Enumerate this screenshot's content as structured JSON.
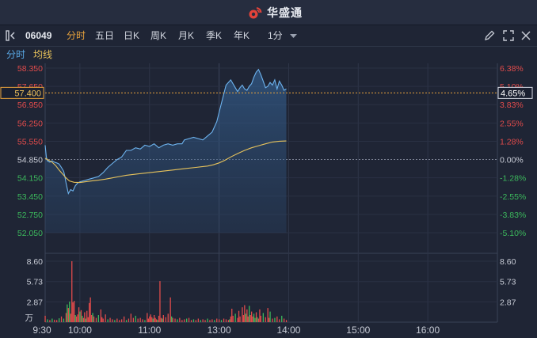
{
  "app": {
    "title": "华盛通"
  },
  "toolbar": {
    "stock_code": "06049",
    "periods": [
      "分时",
      "五日",
      "日K",
      "周K",
      "月K",
      "季K",
      "年K"
    ],
    "active_period": "分时",
    "interval": "1分",
    "icons": [
      "panel-toggle-icon",
      "pencil-icon",
      "expand-icon",
      "close-icon"
    ]
  },
  "legend": {
    "items": [
      "分时",
      "均线"
    ],
    "colors": {
      "price": "#5aa9e6",
      "avg": "#e8c25a"
    }
  },
  "colors": {
    "up": "#e04b4b",
    "down": "#3cb85c",
    "price_line": "#6db3ee",
    "avg_line": "#e7c35c",
    "crosshair": "#e8a23c",
    "axis_text": "#c8ccd6"
  },
  "chart_data": {
    "type": "line",
    "title": "",
    "time_ticks": [
      "9:30",
      "10:00",
      "11:00",
      "13:00",
      "14:00",
      "15:00",
      "16:00"
    ],
    "price_axis": {
      "left_ticks": [
        "58.350",
        "57.650",
        "56.950",
        "56.250",
        "55.550",
        "54.850",
        "54.150",
        "53.450",
        "52.750",
        "52.050"
      ],
      "right_ticks": [
        "6.38%",
        "5.10%",
        "3.83%",
        "2.55%",
        "1.28%",
        "0.00%",
        "-1.28%",
        "-2.55%",
        "-3.83%",
        "-5.10%"
      ],
      "ylim": [
        52.05,
        58.35
      ],
      "prev_close": 54.85
    },
    "crosshair": {
      "price_label": "57.400",
      "pct_label": "4.65%",
      "value": 57.4
    },
    "price_series": {
      "name": "分时",
      "x": [
        0,
        1,
        2,
        4,
        6,
        8,
        10,
        12,
        14,
        16,
        17,
        18,
        20,
        22,
        24,
        26,
        28,
        30,
        34,
        38,
        42,
        46,
        50,
        54,
        58,
        62,
        66,
        70,
        74,
        78,
        82,
        86,
        90,
        94,
        98,
        102,
        106,
        110,
        114,
        118,
        120,
        124,
        128,
        132,
        136,
        140,
        144,
        148,
        152,
        156,
        160,
        164,
        166,
        168,
        170,
        172,
        174,
        176,
        178,
        180,
        182,
        184,
        186,
        188,
        190,
        192,
        194,
        196,
        198,
        200,
        202,
        204,
        206,
        208
      ],
      "values": [
        55.4,
        54.95,
        54.8,
        54.75,
        54.8,
        54.75,
        54.72,
        54.68,
        54.55,
        54.4,
        54.2,
        53.95,
        53.55,
        53.7,
        53.65,
        53.85,
        53.95,
        54.0,
        54.05,
        54.1,
        54.15,
        54.2,
        54.35,
        54.55,
        54.7,
        54.85,
        54.95,
        55.2,
        55.2,
        55.3,
        55.25,
        55.4,
        55.35,
        55.45,
        55.3,
        55.4,
        55.45,
        55.4,
        55.45,
        55.45,
        55.6,
        55.65,
        55.7,
        55.65,
        55.6,
        55.75,
        55.9,
        56.3,
        57.0,
        57.7,
        57.9,
        57.6,
        57.45,
        57.6,
        57.7,
        57.55,
        57.5,
        57.65,
        57.75,
        58.0,
        58.2,
        58.3,
        58.1,
        57.85,
        57.6,
        57.65,
        57.8,
        57.7,
        57.9,
        57.55,
        57.85,
        57.7,
        57.5,
        57.55
      ]
    },
    "avg_series": {
      "name": "均线",
      "x": [
        0,
        3,
        6,
        9,
        12,
        15,
        18,
        21,
        25,
        30,
        35,
        40,
        46,
        52,
        58,
        64,
        70,
        80,
        90,
        100,
        110,
        120,
        130,
        140,
        145,
        150,
        155,
        160,
        166,
        172,
        178,
        184,
        190,
        196,
        202,
        208
      ],
      "values": [
        54.9,
        54.82,
        54.75,
        54.62,
        54.45,
        54.3,
        54.15,
        54.03,
        53.98,
        53.97,
        54.0,
        54.03,
        54.06,
        54.1,
        54.15,
        54.2,
        54.25,
        54.3,
        54.35,
        54.4,
        54.45,
        54.5,
        54.55,
        54.6,
        54.65,
        54.72,
        54.82,
        54.95,
        55.08,
        55.2,
        55.3,
        55.38,
        55.45,
        55.52,
        55.55,
        55.56
      ]
    },
    "volume": {
      "left_ticks": [
        "8.60",
        "5.73",
        "2.87"
      ],
      "right_ticks": [
        "8.60",
        "5.73",
        "2.87"
      ],
      "unit": "万",
      "ylim": [
        0,
        8.6
      ],
      "bars": [
        {
          "x": 0,
          "v": 0.9,
          "d": "up"
        },
        {
          "x": 2,
          "v": 0.4,
          "d": "down"
        },
        {
          "x": 4,
          "v": 0.3,
          "d": "up"
        },
        {
          "x": 6,
          "v": 0.5,
          "d": "down"
        },
        {
          "x": 8,
          "v": 0.35,
          "d": "up"
        },
        {
          "x": 10,
          "v": 0.3,
          "d": "up"
        },
        {
          "x": 12,
          "v": 0.55,
          "d": "down"
        },
        {
          "x": 14,
          "v": 0.8,
          "d": "up"
        },
        {
          "x": 16,
          "v": 0.5,
          "d": "down"
        },
        {
          "x": 18,
          "v": 1.3,
          "d": "up"
        },
        {
          "x": 19,
          "v": 2.5,
          "d": "down"
        },
        {
          "x": 20,
          "v": 2.0,
          "d": "up"
        },
        {
          "x": 21,
          "v": 2.9,
          "d": "down"
        },
        {
          "x": 22,
          "v": 1.2,
          "d": "up"
        },
        {
          "x": 23,
          "v": 8.6,
          "d": "up"
        },
        {
          "x": 24,
          "v": 2.8,
          "d": "up"
        },
        {
          "x": 25,
          "v": 3.0,
          "d": "up"
        },
        {
          "x": 26,
          "v": 1.0,
          "d": "down"
        },
        {
          "x": 27,
          "v": 0.8,
          "d": "up"
        },
        {
          "x": 28,
          "v": 1.1,
          "d": "up"
        },
        {
          "x": 29,
          "v": 2.1,
          "d": "up"
        },
        {
          "x": 30,
          "v": 1.5,
          "d": "down"
        },
        {
          "x": 31,
          "v": 1.7,
          "d": "up"
        },
        {
          "x": 32,
          "v": 0.9,
          "d": "down"
        },
        {
          "x": 33,
          "v": 0.6,
          "d": "up"
        },
        {
          "x": 34,
          "v": 1.4,
          "d": "up"
        },
        {
          "x": 35,
          "v": 0.5,
          "d": "down"
        },
        {
          "x": 36,
          "v": 1.6,
          "d": "up"
        },
        {
          "x": 37,
          "v": 0.7,
          "d": "up"
        },
        {
          "x": 38,
          "v": 2.7,
          "d": "up"
        },
        {
          "x": 39,
          "v": 3.5,
          "d": "up"
        },
        {
          "x": 40,
          "v": 1.0,
          "d": "up"
        },
        {
          "x": 41,
          "v": 1.3,
          "d": "down"
        },
        {
          "x": 42,
          "v": 0.8,
          "d": "up"
        },
        {
          "x": 44,
          "v": 0.6,
          "d": "up"
        },
        {
          "x": 46,
          "v": 1.0,
          "d": "down"
        },
        {
          "x": 48,
          "v": 1.8,
          "d": "up"
        },
        {
          "x": 49,
          "v": 0.7,
          "d": "up"
        },
        {
          "x": 50,
          "v": 0.5,
          "d": "up"
        },
        {
          "x": 52,
          "v": 1.1,
          "d": "up"
        },
        {
          "x": 54,
          "v": 0.4,
          "d": "down"
        },
        {
          "x": 56,
          "v": 0.6,
          "d": "up"
        },
        {
          "x": 58,
          "v": 0.4,
          "d": "up"
        },
        {
          "x": 60,
          "v": 0.3,
          "d": "down"
        },
        {
          "x": 62,
          "v": 0.5,
          "d": "up"
        },
        {
          "x": 64,
          "v": 0.3,
          "d": "up"
        },
        {
          "x": 66,
          "v": 0.4,
          "d": "up"
        },
        {
          "x": 68,
          "v": 0.8,
          "d": "up"
        },
        {
          "x": 70,
          "v": 0.3,
          "d": "down"
        },
        {
          "x": 72,
          "v": 0.5,
          "d": "up"
        },
        {
          "x": 74,
          "v": 1.2,
          "d": "up"
        },
        {
          "x": 76,
          "v": 0.6,
          "d": "up"
        },
        {
          "x": 78,
          "v": 0.9,
          "d": "down"
        },
        {
          "x": 80,
          "v": 0.5,
          "d": "up"
        },
        {
          "x": 82,
          "v": 0.6,
          "d": "up"
        },
        {
          "x": 84,
          "v": 0.4,
          "d": "up"
        },
        {
          "x": 86,
          "v": 0.3,
          "d": "down"
        },
        {
          "x": 88,
          "v": 1.3,
          "d": "up"
        },
        {
          "x": 89,
          "v": 0.5,
          "d": "up"
        },
        {
          "x": 90,
          "v": 0.8,
          "d": "up"
        },
        {
          "x": 91,
          "v": 1.1,
          "d": "up"
        },
        {
          "x": 92,
          "v": 0.7,
          "d": "up"
        },
        {
          "x": 93,
          "v": 0.5,
          "d": "down"
        },
        {
          "x": 94,
          "v": 1.0,
          "d": "up"
        },
        {
          "x": 95,
          "v": 0.6,
          "d": "up"
        },
        {
          "x": 96,
          "v": 0.4,
          "d": "up"
        },
        {
          "x": 97,
          "v": 0.3,
          "d": "down"
        },
        {
          "x": 98,
          "v": 0.9,
          "d": "up"
        },
        {
          "x": 99,
          "v": 5.8,
          "d": "up"
        },
        {
          "x": 100,
          "v": 0.6,
          "d": "up"
        },
        {
          "x": 101,
          "v": 0.5,
          "d": "down"
        },
        {
          "x": 102,
          "v": 1.0,
          "d": "up"
        },
        {
          "x": 104,
          "v": 0.7,
          "d": "up"
        },
        {
          "x": 106,
          "v": 1.2,
          "d": "up"
        },
        {
          "x": 108,
          "v": 3.5,
          "d": "up"
        },
        {
          "x": 109,
          "v": 0.8,
          "d": "down"
        },
        {
          "x": 110,
          "v": 0.6,
          "d": "up"
        },
        {
          "x": 112,
          "v": 0.5,
          "d": "up"
        },
        {
          "x": 114,
          "v": 0.4,
          "d": "down"
        },
        {
          "x": 116,
          "v": 0.6,
          "d": "up"
        },
        {
          "x": 118,
          "v": 0.3,
          "d": "up"
        },
        {
          "x": 120,
          "v": 0.4,
          "d": "up"
        },
        {
          "x": 122,
          "v": 0.5,
          "d": "down"
        },
        {
          "x": 124,
          "v": 0.6,
          "d": "up"
        },
        {
          "x": 126,
          "v": 0.3,
          "d": "up"
        },
        {
          "x": 128,
          "v": 0.4,
          "d": "down"
        },
        {
          "x": 130,
          "v": 0.3,
          "d": "up"
        },
        {
          "x": 132,
          "v": 0.5,
          "d": "up"
        },
        {
          "x": 134,
          "v": 0.3,
          "d": "down"
        },
        {
          "x": 136,
          "v": 0.4,
          "d": "up"
        },
        {
          "x": 138,
          "v": 0.3,
          "d": "up"
        },
        {
          "x": 140,
          "v": 0.5,
          "d": "down"
        },
        {
          "x": 142,
          "v": 0.3,
          "d": "up"
        },
        {
          "x": 144,
          "v": 0.4,
          "d": "up"
        },
        {
          "x": 146,
          "v": 0.3,
          "d": "down"
        },
        {
          "x": 148,
          "v": 0.5,
          "d": "up"
        },
        {
          "x": 150,
          "v": 0.4,
          "d": "up"
        },
        {
          "x": 152,
          "v": 0.3,
          "d": "down"
        },
        {
          "x": 154,
          "v": 0.5,
          "d": "up"
        },
        {
          "x": 156,
          "v": 0.4,
          "d": "up"
        },
        {
          "x": 158,
          "v": 0.3,
          "d": "up"
        },
        {
          "x": 159,
          "v": 0.4,
          "d": "down"
        },
        {
          "x": 160,
          "v": 0.8,
          "d": "up"
        },
        {
          "x": 161,
          "v": 1.9,
          "d": "up"
        },
        {
          "x": 162,
          "v": 0.9,
          "d": "up"
        },
        {
          "x": 164,
          "v": 1.2,
          "d": "down"
        },
        {
          "x": 166,
          "v": 0.6,
          "d": "up"
        },
        {
          "x": 167,
          "v": 1.6,
          "d": "up"
        },
        {
          "x": 168,
          "v": 0.8,
          "d": "up"
        },
        {
          "x": 170,
          "v": 2.1,
          "d": "up"
        },
        {
          "x": 171,
          "v": 1.0,
          "d": "up"
        },
        {
          "x": 172,
          "v": 2.4,
          "d": "up"
        },
        {
          "x": 173,
          "v": 1.2,
          "d": "down"
        },
        {
          "x": 174,
          "v": 1.8,
          "d": "up"
        },
        {
          "x": 175,
          "v": 0.8,
          "d": "up"
        },
        {
          "x": 176,
          "v": 2.3,
          "d": "down"
        },
        {
          "x": 177,
          "v": 1.0,
          "d": "up"
        },
        {
          "x": 178,
          "v": 1.5,
          "d": "up"
        },
        {
          "x": 179,
          "v": 0.8,
          "d": "up"
        },
        {
          "x": 180,
          "v": 1.2,
          "d": "down"
        },
        {
          "x": 181,
          "v": 0.6,
          "d": "down"
        },
        {
          "x": 182,
          "v": 1.4,
          "d": "up"
        },
        {
          "x": 183,
          "v": 0.7,
          "d": "down"
        },
        {
          "x": 184,
          "v": 0.5,
          "d": "up"
        },
        {
          "x": 185,
          "v": 1.8,
          "d": "up"
        },
        {
          "x": 186,
          "v": 0.9,
          "d": "up"
        },
        {
          "x": 188,
          "v": 1.3,
          "d": "down"
        },
        {
          "x": 190,
          "v": 0.7,
          "d": "up"
        },
        {
          "x": 192,
          "v": 2.0,
          "d": "up"
        },
        {
          "x": 193,
          "v": 0.6,
          "d": "up"
        },
        {
          "x": 194,
          "v": 1.5,
          "d": "down"
        },
        {
          "x": 196,
          "v": 0.5,
          "d": "up"
        },
        {
          "x": 198,
          "v": 0.6,
          "d": "down"
        },
        {
          "x": 200,
          "v": 0.8,
          "d": "up"
        },
        {
          "x": 202,
          "v": 0.4,
          "d": "up"
        },
        {
          "x": 204,
          "v": 0.9,
          "d": "down"
        },
        {
          "x": 206,
          "v": 0.5,
          "d": "up"
        },
        {
          "x": 208,
          "v": 0.3,
          "d": "up"
        }
      ]
    }
  }
}
